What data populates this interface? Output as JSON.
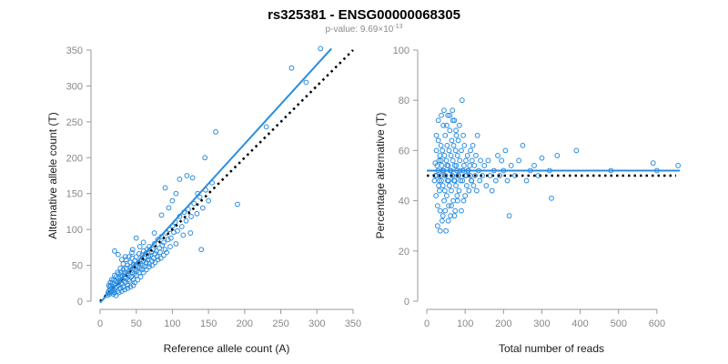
{
  "figure": {
    "title": "rs325381 - ENSG00000068305",
    "subtitle_prefix": "p-value: 9.69×10",
    "subtitle_exponent": "-13"
  },
  "colors": {
    "points": "#2a8ce0",
    "fit_line": "#2a8ce0",
    "reference_line": "#000000"
  },
  "chart_data": [
    {
      "type": "scatter",
      "xlabel": "Reference allele count (A)",
      "ylabel": "Alternative allele count (T)",
      "xlim": [
        0,
        350
      ],
      "ylim": [
        0,
        350
      ],
      "xticks": [
        0,
        50,
        100,
        150,
        200,
        250,
        300,
        350
      ],
      "yticks": [
        0,
        50,
        100,
        150,
        200,
        250,
        300,
        350
      ],
      "grid": false,
      "fit_line": {
        "x": [
          0,
          320
        ],
        "y": [
          -2,
          352
        ],
        "style": "solid"
      },
      "reference_line": {
        "x": [
          0,
          350
        ],
        "y": [
          0,
          350
        ],
        "style": "dotted"
      },
      "points": [
        [
          10,
          8
        ],
        [
          11,
          12
        ],
        [
          12,
          14
        ],
        [
          13,
          10
        ],
        [
          13,
          20
        ],
        [
          14,
          16
        ],
        [
          15,
          12
        ],
        [
          15,
          22
        ],
        [
          16,
          18
        ],
        [
          17,
          14
        ],
        [
          17,
          26
        ],
        [
          18,
          20
        ],
        [
          19,
          16
        ],
        [
          19,
          30
        ],
        [
          20,
          24
        ],
        [
          20,
          12
        ],
        [
          21,
          18
        ],
        [
          22,
          28
        ],
        [
          22,
          34
        ],
        [
          23,
          20
        ],
        [
          24,
          26
        ],
        [
          24,
          14
        ],
        [
          25,
          32
        ],
        [
          26,
          22
        ],
        [
          26,
          38
        ],
        [
          27,
          28
        ],
        [
          28,
          18
        ],
        [
          28,
          34
        ],
        [
          29,
          40
        ],
        [
          30,
          24
        ],
        [
          30,
          30
        ],
        [
          31,
          36
        ],
        [
          32,
          20
        ],
        [
          32,
          44
        ],
        [
          33,
          28
        ],
        [
          34,
          34
        ],
        [
          34,
          40
        ],
        [
          35,
          26
        ],
        [
          36,
          46
        ],
        [
          36,
          32
        ],
        [
          37,
          38
        ],
        [
          38,
          22
        ],
        [
          38,
          50
        ],
        [
          39,
          30
        ],
        [
          40,
          42
        ],
        [
          40,
          36
        ],
        [
          41,
          28
        ],
        [
          42,
          48
        ],
        [
          42,
          54
        ],
        [
          43,
          34
        ],
        [
          44,
          40
        ],
        [
          44,
          60
        ],
        [
          45,
          46
        ],
        [
          46,
          30
        ],
        [
          46,
          52
        ],
        [
          47,
          38
        ],
        [
          48,
          44
        ],
        [
          48,
          56
        ],
        [
          49,
          50
        ],
        [
          50,
          36
        ],
        [
          50,
          62
        ],
        [
          51,
          42
        ],
        [
          52,
          48
        ],
        [
          53,
          54
        ],
        [
          54,
          40
        ],
        [
          54,
          66
        ],
        [
          55,
          46
        ],
        [
          56,
          52
        ],
        [
          57,
          58
        ],
        [
          58,
          44
        ],
        [
          58,
          64
        ],
        [
          59,
          50
        ],
        [
          60,
          56
        ],
        [
          60,
          70
        ],
        [
          62,
          48
        ],
        [
          62,
          60
        ],
        [
          63,
          66
        ],
        [
          64,
          54
        ],
        [
          65,
          72
        ],
        [
          66,
          58
        ],
        [
          67,
          62
        ],
        [
          68,
          52
        ],
        [
          68,
          76
        ],
        [
          70,
          64
        ],
        [
          71,
          68
        ],
        [
          72,
          56
        ],
        [
          73,
          72
        ],
        [
          74,
          60
        ],
        [
          75,
          80
        ],
        [
          76,
          66
        ],
        [
          78,
          70
        ],
        [
          79,
          62
        ],
        [
          80,
          86
        ],
        [
          82,
          74
        ],
        [
          83,
          68
        ],
        [
          85,
          90
        ],
        [
          86,
          78
        ],
        [
          88,
          82
        ],
        [
          90,
          72
        ],
        [
          92,
          95
        ],
        [
          94,
          86
        ],
        [
          96,
          100
        ],
        [
          98,
          88
        ],
        [
          100,
          105
        ],
        [
          102,
          96
        ],
        [
          104,
          110
        ],
        [
          107,
          98
        ],
        [
          110,
          118
        ],
        [
          113,
          104
        ],
        [
          116,
          124
        ],
        [
          119,
          112
        ],
        [
          122,
          128
        ],
        [
          126,
          118
        ],
        [
          130,
          136
        ],
        [
          134,
          122
        ],
        [
          138,
          145
        ],
        [
          142,
          130
        ],
        [
          146,
          155
        ],
        [
          150,
          140
        ],
        [
          155,
          165
        ],
        [
          12,
          22
        ],
        [
          14,
          26
        ],
        [
          16,
          30
        ],
        [
          18,
          10
        ],
        [
          20,
          36
        ],
        [
          22,
          8
        ],
        [
          24,
          40
        ],
        [
          26,
          12
        ],
        [
          28,
          46
        ],
        [
          30,
          14
        ],
        [
          32,
          52
        ],
        [
          34,
          16
        ],
        [
          36,
          58
        ],
        [
          38,
          18
        ],
        [
          40,
          62
        ],
        [
          42,
          20
        ],
        [
          44,
          68
        ],
        [
          46,
          22
        ],
        [
          48,
          26
        ],
        [
          52,
          30
        ],
        [
          56,
          34
        ],
        [
          60,
          40
        ],
        [
          64,
          44
        ],
        [
          68,
          48
        ],
        [
          72,
          50
        ],
        [
          76,
          54
        ],
        [
          80,
          58
        ],
        [
          84,
          60
        ],
        [
          88,
          64
        ],
        [
          92,
          68
        ],
        [
          20,
          70
        ],
        [
          25,
          65
        ],
        [
          30,
          58
        ],
        [
          35,
          62
        ],
        [
          45,
          72
        ],
        [
          50,
          88
        ],
        [
          55,
          76
        ],
        [
          60,
          82
        ],
        [
          75,
          95
        ],
        [
          85,
          120
        ],
        [
          90,
          158
        ],
        [
          95,
          130
        ],
        [
          100,
          140
        ],
        [
          105,
          150
        ],
        [
          110,
          170
        ],
        [
          120,
          175
        ],
        [
          128,
          172
        ],
        [
          135,
          150
        ],
        [
          140,
          72
        ],
        [
          145,
          200
        ],
        [
          160,
          236
        ],
        [
          190,
          135
        ],
        [
          230,
          243
        ],
        [
          265,
          325
        ],
        [
          285,
          305
        ],
        [
          305,
          352
        ],
        [
          125,
          95
        ],
        [
          115,
          92
        ],
        [
          105,
          80
        ],
        [
          97,
          76
        ]
      ]
    },
    {
      "type": "scatter",
      "xlabel": "Total number of reads",
      "ylabel": "Percentage alternative (T)",
      "xlim": [
        0,
        650
      ],
      "ylim": [
        0,
        100
      ],
      "xticks": [
        0,
        100,
        200,
        300,
        400,
        500,
        600
      ],
      "yticks": [
        0,
        20,
        40,
        60,
        80,
        100
      ],
      "grid": false,
      "fit_line": {
        "x": [
          0,
          660
        ],
        "y": [
          52,
          52
        ],
        "style": "solid"
      },
      "reference_line": {
        "x": [
          0,
          650
        ],
        "y": [
          50,
          50
        ],
        "style": "dotted"
      },
      "points": [
        [
          20,
          48
        ],
        [
          22,
          55
        ],
        [
          24,
          42
        ],
        [
          25,
          60
        ],
        [
          26,
          50
        ],
        [
          28,
          38
        ],
        [
          29,
          52
        ],
        [
          30,
          64
        ],
        [
          31,
          46
        ],
        [
          32,
          56
        ],
        [
          33,
          44
        ],
        [
          34,
          58
        ],
        [
          35,
          36
        ],
        [
          36,
          50
        ],
        [
          37,
          62
        ],
        [
          38,
          48
        ],
        [
          39,
          54
        ],
        [
          40,
          32
        ],
        [
          41,
          60
        ],
        [
          42,
          46
        ],
        [
          43,
          70
        ],
        [
          44,
          52
        ],
        [
          45,
          40
        ],
        [
          46,
          58
        ],
        [
          47,
          44
        ],
        [
          48,
          66
        ],
        [
          49,
          50
        ],
        [
          50,
          28
        ],
        [
          51,
          56
        ],
        [
          52,
          42
        ],
        [
          53,
          62
        ],
        [
          54,
          48
        ],
        [
          55,
          74
        ],
        [
          56,
          54
        ],
        [
          57,
          38
        ],
        [
          58,
          60
        ],
        [
          59,
          46
        ],
        [
          60,
          68
        ],
        [
          61,
          52
        ],
        [
          62,
          34
        ],
        [
          63,
          58
        ],
        [
          64,
          44
        ],
        [
          65,
          64
        ],
        [
          66,
          50
        ],
        [
          67,
          76
        ],
        [
          68,
          56
        ],
        [
          69,
          40
        ],
        [
          70,
          62
        ],
        [
          71,
          48
        ],
        [
          72,
          72
        ],
        [
          73,
          54
        ],
        [
          74,
          36
        ],
        [
          75,
          60
        ],
        [
          76,
          46
        ],
        [
          77,
          66
        ],
        [
          78,
          52
        ],
        [
          79,
          42
        ],
        [
          80,
          58
        ],
        [
          81,
          50
        ],
        [
          82,
          64
        ],
        [
          84,
          44
        ],
        [
          86,
          56
        ],
        [
          88,
          48
        ],
        [
          90,
          60
        ],
        [
          92,
          80
        ],
        [
          94,
          52
        ],
        [
          96,
          40
        ],
        [
          98,
          62
        ],
        [
          100,
          50
        ],
        [
          102,
          56
        ],
        [
          104,
          46
        ],
        [
          106,
          58
        ],
        [
          108,
          52
        ],
        [
          110,
          44
        ],
        [
          112,
          54
        ],
        [
          114,
          60
        ],
        [
          116,
          48
        ],
        [
          118,
          56
        ],
        [
          120,
          62
        ],
        [
          122,
          46
        ],
        [
          124,
          54
        ],
        [
          126,
          50
        ],
        [
          128,
          58
        ],
        [
          130,
          44
        ],
        [
          132,
          66
        ],
        [
          135,
          52
        ],
        [
          138,
          48
        ],
        [
          140,
          56
        ],
        [
          145,
          50
        ],
        [
          150,
          54
        ],
        [
          155,
          46
        ],
        [
          160,
          56
        ],
        [
          165,
          50
        ],
        [
          170,
          44
        ],
        [
          175,
          52
        ],
        [
          180,
          48
        ],
        [
          185,
          58
        ],
        [
          190,
          50
        ],
        [
          195,
          56
        ],
        [
          200,
          52
        ],
        [
          205,
          60
        ],
        [
          210,
          48
        ],
        [
          215,
          34
        ],
        [
          220,
          54
        ],
        [
          230,
          50
        ],
        [
          240,
          56
        ],
        [
          250,
          62
        ],
        [
          260,
          48
        ],
        [
          270,
          52
        ],
        [
          280,
          54
        ],
        [
          290,
          50
        ],
        [
          300,
          57
        ],
        [
          320,
          52
        ],
        [
          325,
          41
        ],
        [
          340,
          58
        ],
        [
          390,
          60
        ],
        [
          480,
          52
        ],
        [
          590,
          55
        ],
        [
          600,
          52
        ],
        [
          655,
          54
        ],
        [
          25,
          66
        ],
        [
          28,
          30
        ],
        [
          30,
          72
        ],
        [
          35,
          28
        ],
        [
          38,
          74
        ],
        [
          42,
          34
        ],
        [
          45,
          76
        ],
        [
          48,
          36
        ],
        [
          52,
          70
        ],
        [
          56,
          32
        ],
        [
          60,
          74
        ],
        [
          64,
          38
        ],
        [
          68,
          72
        ],
        [
          72,
          34
        ],
        [
          76,
          68
        ],
        [
          80,
          40
        ],
        [
          85,
          70
        ],
        [
          90,
          36
        ],
        [
          95,
          66
        ],
        [
          100,
          42
        ],
        [
          22,
          50
        ],
        [
          27,
          54
        ],
        [
          33,
          48
        ],
        [
          37,
          56
        ],
        [
          41,
          52
        ],
        [
          47,
          50
        ],
        [
          53,
          54
        ],
        [
          57,
          48
        ],
        [
          63,
          52
        ],
        [
          67,
          50
        ],
        [
          73,
          48
        ],
        [
          77,
          54
        ],
        [
          83,
          50
        ],
        [
          87,
          52
        ],
        [
          93,
          48
        ],
        [
          97,
          54
        ],
        [
          103,
          50
        ],
        [
          107,
          52
        ],
        [
          113,
          50
        ],
        [
          117,
          48
        ]
      ]
    }
  ]
}
